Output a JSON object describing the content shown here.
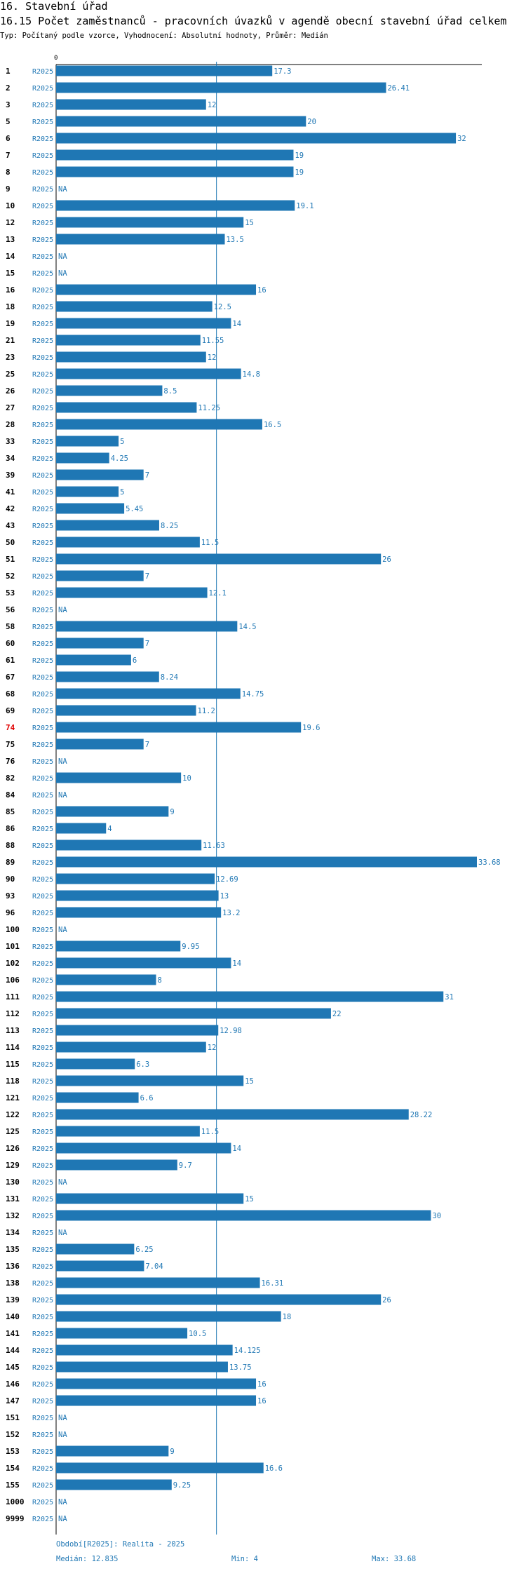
{
  "header": {
    "section_title": "16. Stavební úřad",
    "chart_title": "16.15 Počet zaměstnanců - pracovních úvazků v agendě obecní stavební úřad celkem",
    "subtitle": "Typ: Počítaný podle vzorce, Vyhodnocení: Absolutní hodnoty, Průměr: Medián"
  },
  "colors": {
    "bar": "#1f77b4",
    "median_line": "#1f77b4",
    "highlight": "#e00000",
    "axis": "#000000"
  },
  "chart_data": {
    "type": "bar",
    "orientation": "horizontal",
    "title": "16.15 Počet zaměstnanců - pracovních úvazků v agendě obecní stavební úřad celkem",
    "x_axis_zero_label": "0",
    "xlim": [
      0,
      33.68
    ],
    "period_label": "R2025",
    "na_label": "NA",
    "highlight_category": "74",
    "median": 12.835,
    "categories": [
      "1",
      "2",
      "3",
      "5",
      "6",
      "7",
      "8",
      "9",
      "10",
      "12",
      "13",
      "14",
      "15",
      "16",
      "18",
      "19",
      "21",
      "23",
      "25",
      "26",
      "27",
      "28",
      "33",
      "34",
      "39",
      "41",
      "42",
      "43",
      "50",
      "51",
      "52",
      "53",
      "56",
      "58",
      "60",
      "61",
      "67",
      "68",
      "69",
      "74",
      "75",
      "76",
      "82",
      "84",
      "85",
      "86",
      "88",
      "89",
      "90",
      "93",
      "96",
      "100",
      "101",
      "102",
      "106",
      "111",
      "112",
      "113",
      "114",
      "115",
      "118",
      "121",
      "122",
      "125",
      "126",
      "129",
      "130",
      "131",
      "132",
      "134",
      "135",
      "136",
      "138",
      "139",
      "140",
      "141",
      "144",
      "145",
      "146",
      "147",
      "151",
      "152",
      "153",
      "154",
      "155",
      "1000",
      "9999"
    ],
    "values": [
      17.3,
      26.41,
      12,
      20,
      32,
      19,
      19,
      null,
      19.1,
      15,
      13.5,
      null,
      null,
      16,
      12.5,
      14,
      11.55,
      12,
      14.8,
      8.5,
      11.25,
      16.5,
      5,
      4.25,
      7,
      5,
      5.45,
      8.25,
      11.5,
      26,
      7,
      12.1,
      null,
      14.5,
      7,
      6,
      8.24,
      14.75,
      11.2,
      19.6,
      7,
      null,
      10,
      null,
      9,
      4,
      11.63,
      33.68,
      12.69,
      13,
      13.2,
      null,
      9.95,
      14,
      8,
      31,
      22,
      12.98,
      12,
      6.3,
      15,
      6.6,
      28.22,
      11.5,
      14,
      9.7,
      null,
      15,
      30,
      null,
      6.25,
      7.04,
      16.31,
      26,
      18,
      10.5,
      14.125,
      13.75,
      16,
      16,
      null,
      null,
      9,
      16.6,
      9.25,
      null,
      null
    ],
    "value_labels": [
      "17.3",
      "26.41",
      "12",
      "20",
      "32",
      "19",
      "19",
      "NA",
      "19.1",
      "15",
      "13.5",
      "NA",
      "NA",
      "16",
      "12.5",
      "14",
      "11.55",
      "12",
      "14.8",
      "8.5",
      "11.25",
      "16.5",
      "5",
      "4.25",
      "7",
      "5",
      "5.45",
      "8.25",
      "11.5",
      "26",
      "7",
      "12.1",
      "NA",
      "14.5",
      "7",
      "6",
      "8.24",
      "14.75",
      "11.2",
      "19.6",
      "7",
      "NA",
      "10",
      "NA",
      "9",
      "4",
      "11.63",
      "33.68",
      "12.69",
      "13",
      "13.2",
      "NA",
      "9.95",
      "14",
      "8",
      "31",
      "22",
      "12.98",
      "12",
      "6.3",
      "15",
      "6.6",
      "28.22",
      "11.5",
      "14",
      "9.7",
      "NA",
      "15",
      "30",
      "NA",
      "6.25",
      "7.04",
      "16.31",
      "26",
      "18",
      "10.5",
      "14.125",
      "13.75",
      "16",
      "16",
      "NA",
      "NA",
      "9",
      "16.6",
      "9.25",
      "NA",
      "NA"
    ]
  },
  "footer": {
    "period_text": "Období[R2025]: Realita - 2025",
    "median_text": "Medián: 12.835",
    "min_text": "Min: 4",
    "max_text": "Max: 33.68"
  }
}
